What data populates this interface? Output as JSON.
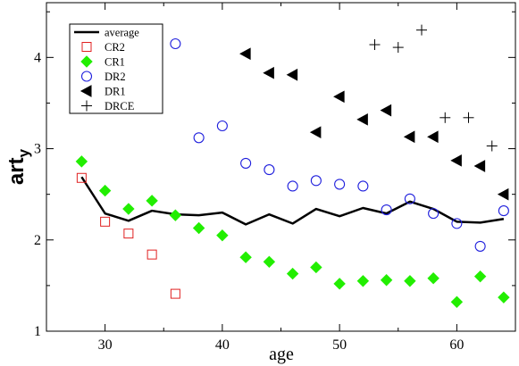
{
  "chart_data": {
    "type": "scatter",
    "title": "",
    "xlabel": "age",
    "ylabel_main": "art",
    "ylabel_sub": "y",
    "xlim": [
      25,
      65
    ],
    "ylim": [
      1,
      4.6
    ],
    "xticks": [
      30,
      40,
      50,
      60
    ],
    "yticks": [
      1,
      2,
      3,
      4
    ],
    "grid": false,
    "legend_position": "top-left",
    "series": [
      {
        "name": "average",
        "kind": "line",
        "color": "#000000",
        "points": [
          [
            28,
            2.69
          ],
          [
            30,
            2.29
          ],
          [
            32,
            2.21
          ],
          [
            34,
            2.32
          ],
          [
            36,
            2.28
          ],
          [
            38,
            2.27
          ],
          [
            40,
            2.3
          ],
          [
            42,
            2.17
          ],
          [
            44,
            2.28
          ],
          [
            46,
            2.18
          ],
          [
            48,
            2.34
          ],
          [
            50,
            2.26
          ],
          [
            52,
            2.35
          ],
          [
            54,
            2.29
          ],
          [
            56,
            2.42
          ],
          [
            58,
            2.34
          ],
          [
            60,
            2.2
          ],
          [
            62,
            2.19
          ],
          [
            64,
            2.23
          ]
        ]
      },
      {
        "name": "CR2",
        "kind": "scatter",
        "marker": "square-open",
        "color": "#e02020",
        "points": [
          [
            28,
            2.68
          ],
          [
            30,
            2.2
          ],
          [
            32,
            2.07
          ],
          [
            34,
            1.84
          ],
          [
            36,
            1.41
          ]
        ]
      },
      {
        "name": "CR1",
        "kind": "scatter",
        "marker": "diamond-filled",
        "color": "#22ee00",
        "points": [
          [
            28,
            2.86
          ],
          [
            30,
            2.54
          ],
          [
            32,
            2.34
          ],
          [
            34,
            2.43
          ],
          [
            36,
            2.27
          ],
          [
            38,
            2.13
          ],
          [
            40,
            2.05
          ],
          [
            42,
            1.81
          ],
          [
            44,
            1.76
          ],
          [
            46,
            1.63
          ],
          [
            48,
            1.7
          ],
          [
            50,
            1.52
          ],
          [
            52,
            1.55
          ],
          [
            54,
            1.56
          ],
          [
            56,
            1.55
          ],
          [
            58,
            1.58
          ],
          [
            60,
            1.32
          ],
          [
            62,
            1.6
          ],
          [
            64,
            1.37
          ]
        ]
      },
      {
        "name": "DR2",
        "kind": "scatter",
        "marker": "circle-open",
        "color": "#1f1fdd",
        "points": [
          [
            36,
            4.15
          ],
          [
            38,
            3.12
          ],
          [
            40,
            3.25
          ],
          [
            42,
            2.84
          ],
          [
            44,
            2.77
          ],
          [
            46,
            2.59
          ],
          [
            48,
            2.65
          ],
          [
            50,
            2.61
          ],
          [
            52,
            2.59
          ],
          [
            54,
            2.33
          ],
          [
            56,
            2.45
          ],
          [
            58,
            2.29
          ],
          [
            60,
            2.18
          ],
          [
            62,
            1.93
          ],
          [
            64,
            2.32
          ]
        ]
      },
      {
        "name": "DR1",
        "kind": "scatter",
        "marker": "triangle-left-filled",
        "color": "#000000",
        "points": [
          [
            42,
            4.04
          ],
          [
            44,
            3.83
          ],
          [
            46,
            3.81
          ],
          [
            48,
            3.18
          ],
          [
            50,
            3.57
          ],
          [
            52,
            3.32
          ],
          [
            54,
            3.42
          ],
          [
            56,
            3.13
          ],
          [
            58,
            3.13
          ],
          [
            60,
            2.87
          ],
          [
            62,
            2.81
          ],
          [
            64,
            2.5
          ]
        ]
      },
      {
        "name": "DRCE",
        "kind": "scatter",
        "marker": "plus",
        "color": "#000000",
        "points": [
          [
            53,
            4.14
          ],
          [
            55,
            4.11
          ],
          [
            57,
            4.3
          ],
          [
            59,
            3.34
          ],
          [
            61,
            3.34
          ],
          [
            63,
            3.03
          ]
        ]
      }
    ]
  }
}
